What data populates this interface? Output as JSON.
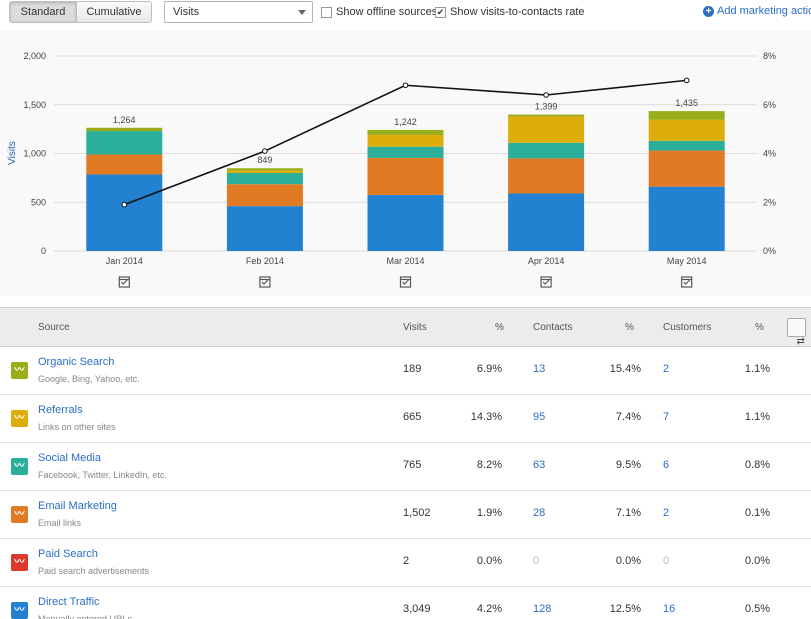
{
  "toolbar": {
    "standard_label": "Standard",
    "cumulative_label": "Cumulative",
    "metric_select": "Visits",
    "offline_label": "Show offline sources",
    "offline_checked": false,
    "rate_label": "Show visits-to-contacts rate",
    "rate_checked": true,
    "add_action_label": "Add marketing action"
  },
  "chart_data": {
    "type": "bar",
    "stacked": true,
    "categories": [
      "Jan 2014",
      "Feb 2014",
      "Mar 2014",
      "Apr 2014",
      "May 2014"
    ],
    "totals": [
      1264,
      849,
      1242,
      1399,
      1435
    ],
    "total_labels": [
      "1,264",
      "849",
      "1,242",
      "1,399",
      "1,435"
    ],
    "ylabel": "Visits",
    "ylim": [
      0,
      2000
    ],
    "y_ticks": [
      "0",
      "500",
      "1,000",
      "1,500",
      "2,000"
    ],
    "y2_ticks": [
      "0%",
      "2%",
      "4%",
      "6%",
      "8%"
    ],
    "y2lim": [
      0,
      8
    ],
    "series": [
      {
        "color": "#2281d1",
        "values": [
          785,
          460,
          575,
          590,
          660
        ]
      },
      {
        "color": "#e07b24",
        "values": [
          205,
          225,
          380,
          360,
          370
        ]
      },
      {
        "color": "#2baf9a",
        "values": [
          240,
          115,
          115,
          160,
          100
        ]
      },
      {
        "color": "#ddae0b",
        "values": [
          0,
          25,
          120,
          270,
          215
        ]
      },
      {
        "color": "#9aae1c",
        "values": [
          34,
          24,
          52,
          19,
          90
        ]
      }
    ],
    "rate_line": [
      1.9,
      4.1,
      6.8,
      6.4,
      7.0
    ],
    "grid": true
  },
  "table": {
    "headers": {
      "source": "Source",
      "visits": "Visits",
      "pct1": "%",
      "contacts": "Contacts",
      "pct2": "%",
      "customers": "Customers",
      "pct3": "%"
    },
    "swap_icon": "⇄",
    "rows": [
      {
        "name": "Organic Search",
        "sub": "Google, Bing, Yahoo, etc.",
        "color": "#9aae1c",
        "visits": "189",
        "pct1": "6.9%",
        "contacts": "13",
        "pct2": "15.4%",
        "customers": "2",
        "pct3": "1.1%",
        "contacts_zero": false,
        "customers_zero": false
      },
      {
        "name": "Referrals",
        "sub": "Links on other sites",
        "color": "#ddae0b",
        "visits": "665",
        "pct1": "14.3%",
        "contacts": "95",
        "pct2": "7.4%",
        "customers": "7",
        "pct3": "1.1%",
        "contacts_zero": false,
        "customers_zero": false
      },
      {
        "name": "Social Media",
        "sub": "Facebook, Twitter, LinkedIn, etc.",
        "color": "#2baf9a",
        "visits": "765",
        "pct1": "8.2%",
        "contacts": "63",
        "pct2": "9.5%",
        "customers": "6",
        "pct3": "0.8%",
        "contacts_zero": false,
        "customers_zero": false
      },
      {
        "name": "Email Marketing",
        "sub": "Email links",
        "color": "#e07b24",
        "visits": "1,502",
        "pct1": "1.9%",
        "contacts": "28",
        "pct2": "7.1%",
        "customers": "2",
        "pct3": "0.1%",
        "contacts_zero": false,
        "customers_zero": false
      },
      {
        "name": "Paid Search",
        "sub": "Paid search advertisements",
        "color": "#d93a2b",
        "visits": "2",
        "pct1": "0.0%",
        "contacts": "0",
        "pct2": "0.0%",
        "customers": "0",
        "pct3": "0.0%",
        "contacts_zero": true,
        "customers_zero": true
      },
      {
        "name": "Direct Traffic",
        "sub": "Manually entered URLs",
        "color": "#2281d1",
        "visits": "3,049",
        "pct1": "4.2%",
        "contacts": "128",
        "pct2": "12.5%",
        "customers": "16",
        "pct3": "0.5%",
        "contacts_zero": false,
        "customers_zero": false
      }
    ]
  }
}
